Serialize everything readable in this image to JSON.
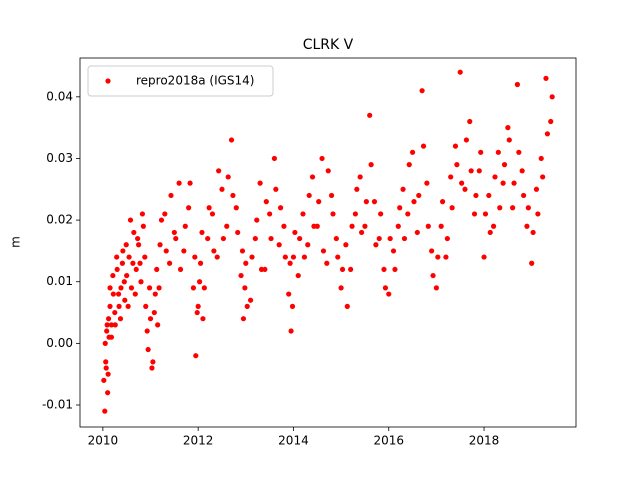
{
  "chart_data": {
    "type": "scatter",
    "title": "CLRK V",
    "y_label": "m",
    "xlim": [
      2009.52,
      2019.93
    ],
    "ylim": [
      -0.01357,
      0.0463
    ],
    "xticks": [
      2010,
      2012,
      2014,
      2016,
      2018
    ],
    "yticks": [
      -0.01,
      {
        "value": 0,
        "label": "0.00"
      },
      0.01,
      0.02,
      0.03,
      0.04
    ],
    "legend": "upper left",
    "grid": false,
    "x": [
      2010.02,
      2010.04,
      2010.06,
      2010.08,
      2010.1,
      2010.12,
      2010.15,
      2010.18,
      2010.22,
      2010.26,
      2010.3,
      2010.34,
      2010.38,
      2010.42,
      2010.46,
      2010.5,
      2010.55,
      2010.6,
      2010.65,
      2010.7,
      2010.75,
      2010.8,
      2010.85,
      2010.9,
      2010.95,
      2011.0,
      2011.05,
      2011.1,
      2011.15,
      2011.2,
      2011.3,
      2011.4,
      2011.5,
      2011.6,
      2011.7,
      2011.8,
      2011.9,
      2011.95,
      2012.0,
      2012.05,
      2012.1,
      2012.2,
      2012.3,
      2012.4,
      2012.5,
      2012.6,
      2012.7,
      2012.8,
      2012.9,
      2012.95,
      2013.0,
      2013.1,
      2013.2,
      2013.3,
      2013.4,
      2013.5,
      2013.6,
      2013.7,
      2013.8,
      2013.9,
      2013.95,
      2014.0,
      2014.1,
      2014.2,
      2014.3,
      2014.4,
      2014.5,
      2014.6,
      2014.7,
      2014.8,
      2014.9,
      2015.0,
      2015.1,
      2015.2,
      2015.3,
      2015.4,
      2015.5,
      2015.6,
      2015.7,
      2015.8,
      2015.9,
      2016.0,
      2016.1,
      2016.2,
      2016.3,
      2016.4,
      2016.5,
      2016.6,
      2016.7,
      2016.8,
      2016.9,
      2017.0,
      2017.1,
      2017.2,
      2017.3,
      2017.4,
      2017.5,
      2017.6,
      2017.7,
      2017.8,
      2017.9,
      2018.0,
      2018.1,
      2018.2,
      2018.3,
      2018.4,
      2018.5,
      2018.6,
      2018.7,
      2018.8,
      2018.9,
      2019.0,
      2019.1,
      2019.2,
      2019.3,
      2019.4,
      2010.05,
      2010.07,
      2010.09,
      2010.11,
      2010.13,
      2010.15,
      2010.18,
      2010.21,
      2010.25,
      2010.29,
      2010.33,
      2010.37,
      2010.41,
      2010.45,
      2010.49,
      2010.53,
      2010.58,
      2010.63,
      2010.68,
      2010.73,
      2010.78,
      2010.83,
      2010.88,
      2010.93,
      2010.98,
      2011.03,
      2011.08,
      2011.13,
      2011.18,
      2011.23,
      2011.33,
      2011.43,
      2011.53,
      2011.63,
      2011.73,
      2011.83,
      2011.93,
      2011.98,
      2012.03,
      2012.08,
      2012.13,
      2012.23,
      2012.33,
      2012.43,
      2012.53,
      2012.63,
      2012.73,
      2012.83,
      2012.93,
      2012.98,
      2013.03,
      2013.13,
      2013.23,
      2013.33,
      2013.43,
      2013.53,
      2013.63,
      2013.73,
      2013.83,
      2013.93,
      2013.98,
      2014.03,
      2014.13,
      2014.23,
      2014.33,
      2014.43,
      2014.53,
      2014.63,
      2014.73,
      2014.83,
      2014.93,
      2015.03,
      2015.13,
      2015.23,
      2015.33,
      2015.43,
      2015.53,
      2015.63,
      2015.73,
      2015.83,
      2015.93,
      2016.03,
      2016.13,
      2016.23,
      2016.33,
      2016.43,
      2016.53,
      2016.63,
      2016.73,
      2016.83,
      2016.93,
      2017.03,
      2017.13,
      2017.23,
      2017.33,
      2017.43,
      2017.53,
      2017.63,
      2017.73,
      2017.83,
      2017.93,
      2018.03,
      2018.13,
      2018.23,
      2018.33,
      2018.43,
      2018.53,
      2018.63,
      2018.73,
      2018.83,
      2018.93,
      2019.03,
      2019.13,
      2019.23,
      2019.33,
      2019.43
    ],
    "series": [
      {
        "name": "repro2018a (IGS14)",
        "color": "#ff0000",
        "values": [
          -0.006,
          -0.011,
          -0.003,
          0.002,
          -0.008,
          0.004,
          0.006,
          0.001,
          0.008,
          0.003,
          0.012,
          0.006,
          0.009,
          0.015,
          0.007,
          0.011,
          0.014,
          0.009,
          0.018,
          0.012,
          0.016,
          0.01,
          0.019,
          0.006,
          -0.001,
          0.004,
          -0.003,
          0.008,
          0.003,
          0.016,
          0.021,
          0.013,
          0.018,
          0.026,
          0.015,
          0.022,
          0.009,
          -0.002,
          0.006,
          0.013,
          0.004,
          0.017,
          0.021,
          0.014,
          0.025,
          0.019,
          0.033,
          0.022,
          0.011,
          0.004,
          0.013,
          0.007,
          0.017,
          0.026,
          0.012,
          0.021,
          0.03,
          0.016,
          0.019,
          0.008,
          0.002,
          0.014,
          0.011,
          0.021,
          0.016,
          0.027,
          0.019,
          0.03,
          0.013,
          0.024,
          0.017,
          0.009,
          0.016,
          0.012,
          0.021,
          0.027,
          0.019,
          0.037,
          0.023,
          0.017,
          0.012,
          0.008,
          0.015,
          0.019,
          0.025,
          0.021,
          0.031,
          0.018,
          0.041,
          0.026,
          0.015,
          0.009,
          0.019,
          0.014,
          0.027,
          0.032,
          0.044,
          0.025,
          0.036,
          0.021,
          0.028,
          0.014,
          0.024,
          0.019,
          0.031,
          0.026,
          0.035,
          0.022,
          0.042,
          0.028,
          0.019,
          0.013,
          0.025,
          0.03,
          0.043,
          0.036,
          0.0,
          -0.004,
          0.003,
          -0.005,
          0.001,
          0.009,
          0.003,
          0.011,
          0.005,
          0.014,
          0.008,
          0.004,
          0.013,
          0.01,
          0.016,
          0.006,
          0.02,
          0.013,
          0.008,
          0.017,
          0.013,
          0.021,
          0.014,
          0.002,
          0.009,
          -0.004,
          0.005,
          0.012,
          0.009,
          0.02,
          0.015,
          0.024,
          0.017,
          0.012,
          0.019,
          0.026,
          0.014,
          0.005,
          0.01,
          0.018,
          0.009,
          0.022,
          0.015,
          0.028,
          0.017,
          0.027,
          0.024,
          0.018,
          0.015,
          0.009,
          0.006,
          0.014,
          0.02,
          0.012,
          0.023,
          0.017,
          0.025,
          0.022,
          0.014,
          0.013,
          0.006,
          0.018,
          0.017,
          0.014,
          0.024,
          0.019,
          0.023,
          0.015,
          0.028,
          0.021,
          0.014,
          0.012,
          0.006,
          0.019,
          0.025,
          0.018,
          0.023,
          0.029,
          0.016,
          0.021,
          0.009,
          0.017,
          0.012,
          0.022,
          0.017,
          0.029,
          0.023,
          0.024,
          0.032,
          0.019,
          0.011,
          0.014,
          0.023,
          0.017,
          0.022,
          0.029,
          0.026,
          0.033,
          0.028,
          0.024,
          0.031,
          0.021,
          0.018,
          0.027,
          0.022,
          0.029,
          0.033,
          0.026,
          0.031,
          0.024,
          0.022,
          0.018,
          0.021,
          0.027,
          0.034,
          0.04
        ]
      }
    ]
  }
}
